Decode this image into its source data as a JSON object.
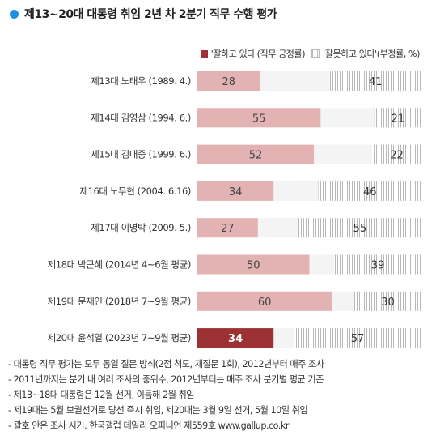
{
  "title": "제13~20대 대통령 취임 2년 차 2분기 직무 수행 평가",
  "legend": {
    "positive": "'잘하고 있다'(직무 긍정률)",
    "negative": "'잘못하고 있다'(부정률, %)"
  },
  "colors": {
    "positive_light": "#e3b3b4",
    "positive_highlight": "#9b3133",
    "negative_hatch": "#b8b8b8",
    "track": "#f4f4f4"
  },
  "chart_data": {
    "type": "bar",
    "orientation": "horizontal",
    "stacked_compare": true,
    "categories": [
      "제13대 노태우 (1989. 4.)",
      "제14대 김영삼 (1994. 6.)",
      "제15대 김대중 (1999. 6.)",
      "제16대 노무현 (2004. 6.16)",
      "제17대 이명박 (2009. 5.)",
      "제18대 박근혜 (2014년 4~6월 평균)",
      "제19대 문재인 (2018년 7~9월 평균)",
      "제20대 윤석열 (2023년 7~9월 평균)"
    ],
    "series": [
      {
        "name": "'잘하고 있다'(직무 긍정률)",
        "values": [
          28,
          55,
          52,
          34,
          27,
          50,
          60,
          34
        ]
      },
      {
        "name": "'잘못하고 있다'(부정률, %)",
        "values": [
          41,
          21,
          22,
          46,
          55,
          39,
          30,
          57
        ]
      }
    ],
    "highlight_index": 7,
    "xlim": [
      0,
      100
    ]
  },
  "notes": [
    "- 대통령 직무 평가는 모두 동일 질문 방식(2점 척도, 재질문 1회), 2012년부터 매주 조사",
    "- 2011년까지는 분기 내 여러 조사의 중위수, 2012년부터는 매주 조사 분기별 평균 기준",
    "- 제13~18대 대통령은 12월 선거, 이듬해 2월 취임",
    "- 제19대는 5월 보궐선거로 당선 즉시 취임, 제20대는 3월 9일 선거, 5월 10일 취임",
    "- 괄호 안은 조사 시기. 한국갤럽 데일리 오피니언 제559호 www.gallup.co.kr"
  ]
}
